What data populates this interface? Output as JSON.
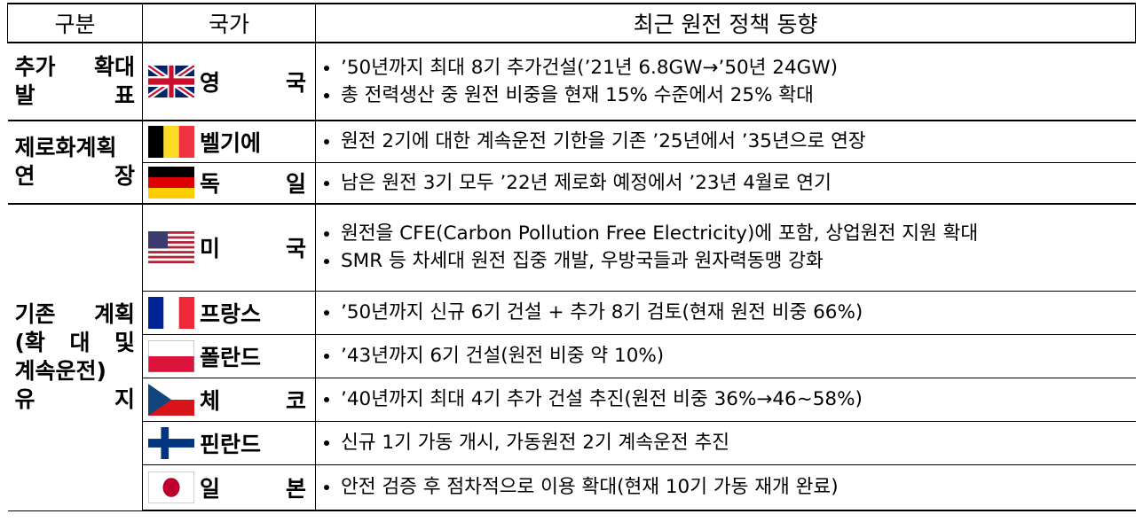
{
  "header": [
    "구분",
    "국가",
    "최근 원전 정책 동향"
  ],
  "groups": [
    {
      "label": [
        "추가 확대",
        "발 표"
      ],
      "rows": [
        {
          "country": "영 국",
          "policies": [
            "’50년까지 최대 8기 추가건설(’21년 6.8GW→’50년 24GW)",
            "총 전력생산 중 원전 비중을 현재 15% 수준에서 25% 확대"
          ]
        }
      ]
    },
    {
      "label": [
        "제로화계획",
        "연 장"
      ],
      "rows": [
        {
          "country": "벨기에",
          "policies": [
            "원전 2기에 대한 계속운전 기한을 기존 ’25년에서 ’35년으로 연장"
          ]
        },
        {
          "country": "독 일",
          "policies": [
            "남은 원전 3기 모두 ’22년 제로화 예정에서 ’23년 4월로 연기"
          ]
        }
      ]
    },
    {
      "label": [
        "기존 계획",
        "(확 대 및",
        "계속운전)",
        "유 지"
      ],
      "rows": [
        {
          "country": "미 국",
          "policies": [
            "원전을 CFE(Carbon Pollution Free Electricity)에 포함, 상업원전 지원 확대",
            "SMR 등 차세대 원전 집중 개발, 우방국들과 원자력동맹 강화"
          ]
        },
        {
          "country": "프랑스",
          "policies": [
            "’50년까지 신규 6기 건설 + 추가 8기 검토(현재 원전 비중 66%)"
          ]
        },
        {
          "country": "폴란드",
          "policies": [
            "’43년까지 6기 건설(원전 비중 약 10%)"
          ]
        },
        {
          "country": "체 코",
          "policies": [
            "’40년까지 최대 4기 추가 건설 추진(원전 비중 36%→46~58%)"
          ]
        },
        {
          "country": "핀란드",
          "policies": [
            "신규 1기 가동 개시, 가동원전 2기 계속운전 추진"
          ]
        },
        {
          "country": "일 본",
          "policies": [
            "안전 검증 후 점차적으로 이용 확대(현재 10기 가동 재개 완료)"
          ]
        }
      ]
    }
  ]
}
